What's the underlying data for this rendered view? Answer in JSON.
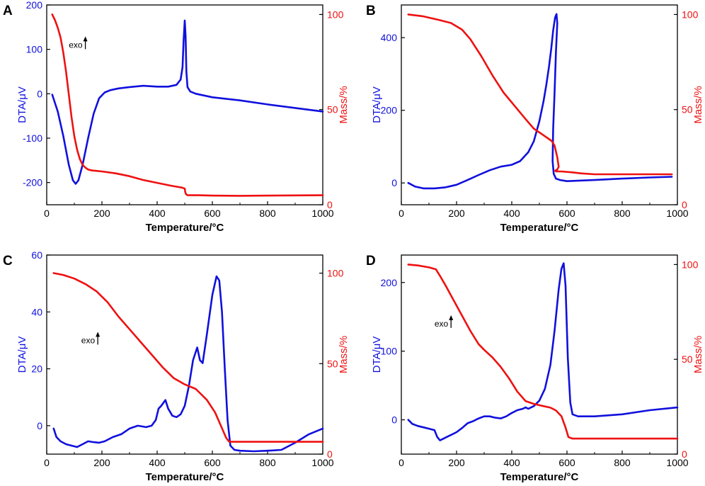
{
  "colors": {
    "dta": "#1010dd",
    "mass": "#ee1111",
    "axis": "#000000"
  },
  "chart_data": [
    {
      "panel": "A",
      "type": "line",
      "xlabel": "Temperature/°C",
      "ylabel_left": "DTA/μV",
      "ylabel_right": "Mass/%",
      "xlim": [
        0,
        1000
      ],
      "ylim_left": [
        -250,
        200
      ],
      "ylim_right": [
        0,
        105
      ],
      "xticks": [
        0,
        200,
        400,
        600,
        800,
        1000
      ],
      "yticks_left": [
        -200,
        -100,
        0,
        100,
        200
      ],
      "yticks_right": [
        0,
        50,
        100
      ],
      "annotation": {
        "text": "exo",
        "x": 140,
        "y": 110
      },
      "series": [
        {
          "name": "DTA",
          "axis": "left",
          "x": [
            20,
            40,
            60,
            80,
            95,
            105,
            115,
            130,
            150,
            170,
            190,
            210,
            230,
            260,
            300,
            350,
            400,
            440,
            470,
            485,
            492,
            496,
            500,
            503,
            506,
            510,
            520,
            540,
            600,
            700,
            800,
            900,
            1000
          ],
          "y": [
            -2,
            -40,
            -95,
            -160,
            -195,
            -203,
            -195,
            -160,
            -100,
            -45,
            -10,
            3,
            8,
            12,
            15,
            18,
            16,
            16,
            20,
            32,
            60,
            120,
            165,
            130,
            50,
            15,
            5,
            0,
            -8,
            -15,
            -24,
            -32,
            -40
          ]
        },
        {
          "name": "Mass",
          "axis": "right",
          "x": [
            20,
            30,
            40,
            50,
            60,
            70,
            80,
            90,
            100,
            110,
            120,
            130,
            140,
            150,
            165,
            180,
            200,
            250,
            300,
            350,
            400,
            450,
            490,
            500,
            502,
            505,
            510,
            550,
            600,
            700,
            800,
            900,
            1000
          ],
          "y": [
            100,
            97,
            93,
            88,
            80,
            70,
            58,
            46,
            36,
            29,
            24,
            21,
            19.5,
            18.5,
            18,
            17.8,
            17.5,
            16.5,
            15,
            13,
            11.5,
            10,
            9,
            8.5,
            6.5,
            5.5,
            5,
            5,
            4.8,
            4.7,
            4.8,
            4.9,
            5
          ]
        }
      ]
    },
    {
      "panel": "B",
      "type": "line",
      "xlabel": "Temperature/°C",
      "ylabel_left": "DTA/μV",
      "ylabel_right": "Mass/%",
      "xlim": [
        0,
        1000
      ],
      "ylim_left": [
        -60,
        490
      ],
      "ylim_right": [
        0,
        105
      ],
      "xticks": [
        0,
        200,
        400,
        600,
        800,
        1000
      ],
      "yticks_left": [
        0,
        200,
        400
      ],
      "yticks_right": [
        0,
        50,
        100
      ],
      "series": [
        {
          "name": "DTA",
          "axis": "left",
          "x": [
            25,
            50,
            80,
            120,
            160,
            200,
            240,
            280,
            320,
            360,
            400,
            430,
            460,
            480,
            500,
            515,
            525,
            535,
            543,
            550,
            557,
            562,
            565,
            560,
            555,
            550,
            548,
            552,
            560,
            575,
            600,
            700,
            800,
            900,
            980
          ],
          "y": [
            0,
            -10,
            -15,
            -15,
            -12,
            -5,
            8,
            22,
            35,
            45,
            50,
            60,
            85,
            115,
            170,
            225,
            270,
            320,
            370,
            420,
            455,
            465,
            440,
            360,
            250,
            150,
            60,
            25,
            12,
            8,
            5,
            8,
            12,
            15,
            17
          ]
        },
        {
          "name": "Mass",
          "axis": "right",
          "x": [
            25,
            80,
            140,
            180,
            220,
            250,
            290,
            330,
            370,
            410,
            450,
            480,
            510,
            530,
            545,
            555,
            560,
            565,
            570,
            565,
            558,
            560,
            580,
            620,
            650,
            700,
            800,
            900,
            980
          ],
          "y": [
            100,
            99,
            97,
            95.5,
            92,
            87,
            78,
            68,
            59,
            52,
            45,
            40,
            37,
            35,
            33.5,
            31,
            28,
            25,
            20,
            18.5,
            18,
            17.5,
            17.5,
            17,
            16.5,
            16,
            16,
            16,
            16
          ]
        }
      ]
    },
    {
      "panel": "C",
      "type": "line",
      "xlabel": "Temperature/°C",
      "ylabel_left": "DTA/μV",
      "ylabel_right": "Mass/%",
      "xlim": [
        0,
        1000
      ],
      "ylim_left": [
        -10,
        60
      ],
      "ylim_right": [
        0,
        110
      ],
      "xticks": [
        0,
        200,
        400,
        600,
        800,
        1000
      ],
      "yticks_left": [
        0,
        20,
        40,
        60
      ],
      "yticks_right": [
        0,
        50,
        100
      ],
      "annotation": {
        "text": "exo",
        "x": 185,
        "y": 30
      },
      "series": [
        {
          "name": "DTA",
          "axis": "left",
          "x": [
            25,
            35,
            50,
            70,
            90,
            110,
            130,
            150,
            170,
            190,
            210,
            240,
            270,
            300,
            330,
            360,
            380,
            395,
            405,
            415,
            430,
            440,
            455,
            470,
            485,
            500,
            515,
            530,
            545,
            555,
            565,
            580,
            600,
            615,
            625,
            635,
            645,
            655,
            665,
            680,
            700,
            750,
            800,
            850,
            900,
            950,
            1000
          ],
          "y": [
            -1,
            -4,
            -5.5,
            -6.5,
            -7,
            -7.5,
            -6.5,
            -5.5,
            -5.8,
            -6,
            -5.5,
            -4,
            -3,
            -1,
            0,
            -0.5,
            0,
            2,
            6,
            7,
            9,
            6,
            3.5,
            3,
            4,
            7,
            14,
            23,
            27.5,
            23,
            22,
            32,
            46,
            52.5,
            51,
            40,
            20,
            2,
            -7,
            -8.5,
            -8.8,
            -9,
            -8.8,
            -8.5,
            -6,
            -3,
            -1
          ]
        },
        {
          "name": "Mass",
          "axis": "right",
          "x": [
            25,
            60,
            100,
            140,
            180,
            220,
            260,
            300,
            340,
            380,
            420,
            460,
            500,
            540,
            580,
            610,
            630,
            650,
            660,
            670,
            700,
            800,
            900,
            1000
          ],
          "y": [
            100,
            99,
            97,
            94,
            90,
            84,
            76,
            69,
            62,
            55,
            48,
            42,
            38.5,
            36,
            30,
            23,
            16,
            9,
            7,
            6.8,
            6.8,
            6.8,
            6.8,
            6.8
          ]
        }
      ]
    },
    {
      "panel": "D",
      "type": "line",
      "xlabel": "Temperature/°C",
      "ylabel_left": "DTA/μV",
      "ylabel_right": "Mass/%",
      "xlim": [
        0,
        1000
      ],
      "ylim_left": [
        -50,
        240
      ],
      "ylim_right": [
        0,
        105
      ],
      "xticks": [
        0,
        200,
        400,
        600,
        800,
        1000
      ],
      "yticks_left": [
        0,
        100,
        200
      ],
      "yticks_right": [
        0,
        50,
        100
      ],
      "annotation": {
        "text": "exo",
        "x": 180,
        "y": 140
      },
      "series": [
        {
          "name": "DTA",
          "axis": "left",
          "x": [
            25,
            40,
            60,
            80,
            100,
            120,
            130,
            140,
            150,
            160,
            180,
            200,
            220,
            240,
            260,
            280,
            300,
            320,
            340,
            360,
            380,
            400,
            420,
            440,
            450,
            460,
            470,
            480,
            500,
            520,
            540,
            555,
            570,
            580,
            588,
            595,
            603,
            612,
            620,
            640,
            700,
            800,
            900,
            1000
          ],
          "y": [
            0,
            -6,
            -9,
            -11,
            -13,
            -15,
            -25,
            -30,
            -28,
            -26,
            -22,
            -18,
            -12,
            -5,
            -2,
            2,
            5,
            5,
            3,
            2,
            5,
            10,
            14,
            16,
            18,
            16,
            18,
            20,
            28,
            45,
            80,
            130,
            190,
            220,
            228,
            195,
            90,
            25,
            8,
            5,
            5,
            8,
            14,
            18
          ]
        },
        {
          "name": "Mass",
          "axis": "right",
          "x": [
            25,
            60,
            100,
            125,
            140,
            160,
            190,
            220,
            250,
            280,
            300,
            330,
            360,
            390,
            420,
            450,
            480,
            510,
            540,
            560,
            580,
            595,
            605,
            620,
            700,
            800,
            900,
            1000
          ],
          "y": [
            100,
            99.5,
            98.5,
            97.5,
            94,
            89,
            81,
            73,
            65,
            58,
            55,
            51,
            46,
            40,
            33,
            28,
            26.5,
            25.5,
            24.5,
            23,
            20,
            14,
            9,
            8.2,
            8.2,
            8.2,
            8.2,
            8.2
          ]
        }
      ]
    }
  ]
}
